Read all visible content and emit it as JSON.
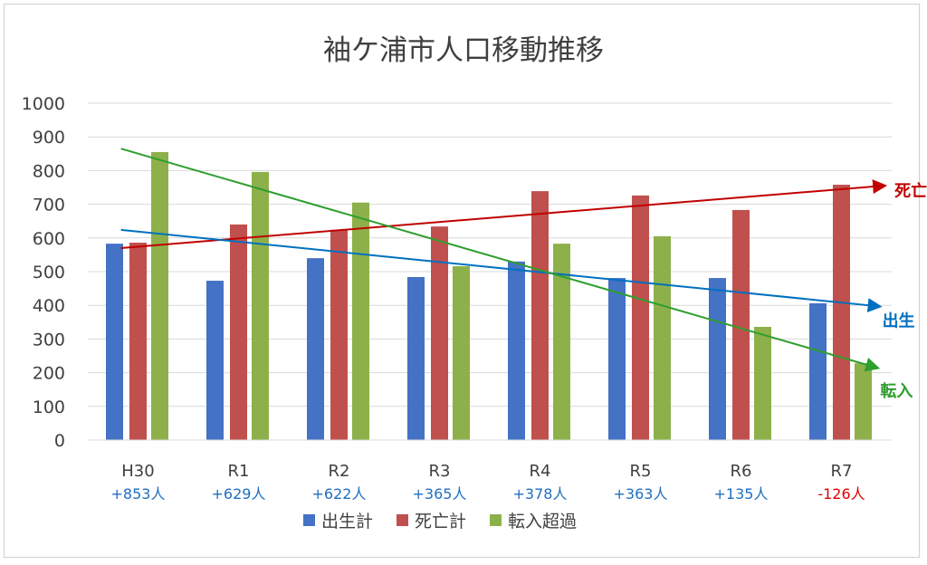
{
  "chart_data": {
    "type": "bar",
    "title": "袖ケ浦市人口移動推移",
    "categories": [
      "H30",
      "R1",
      "R2",
      "R3",
      "R4",
      "R5",
      "R6",
      "R7"
    ],
    "net_labels": [
      "+853人",
      "+629人",
      "+622人",
      "+365人",
      "+378人",
      "+363人",
      "+135人",
      "-126人"
    ],
    "net_values": [
      853,
      629,
      622,
      365,
      378,
      363,
      135,
      -126
    ],
    "series": [
      {
        "name": "出生計",
        "color": "#4472c4",
        "values": [
          583,
          473,
          540,
          484,
          530,
          481,
          481,
          406
        ]
      },
      {
        "name": "死亡計",
        "color": "#c0504d",
        "values": [
          586,
          640,
          624,
          634,
          739,
          726,
          683,
          758
        ]
      },
      {
        "name": "転入超過",
        "color": "#8db04a",
        "values": [
          855,
          796,
          705,
          516,
          583,
          605,
          336,
          228
        ]
      }
    ],
    "ylim": [
      0,
      1000
    ],
    "yticks": [
      0,
      100,
      200,
      300,
      400,
      500,
      600,
      700,
      800,
      900,
      1000
    ],
    "grid": true,
    "legend_position": "bottom",
    "trend_arrows": [
      {
        "label": "死亡",
        "color": "#c00000",
        "start": [
          -0.17,
          570
        ],
        "end": [
          7.42,
          755
        ]
      },
      {
        "label": "出生",
        "color": "#0070c0",
        "start": [
          -0.17,
          624
        ],
        "end": [
          7.37,
          397
        ]
      },
      {
        "label": "転入",
        "color": "#2e9e2e",
        "start": [
          -0.17,
          865
        ],
        "end": [
          7.35,
          215
        ]
      }
    ],
    "colors": {
      "positive": "#1f6fc0",
      "negative": "#e00000"
    }
  }
}
